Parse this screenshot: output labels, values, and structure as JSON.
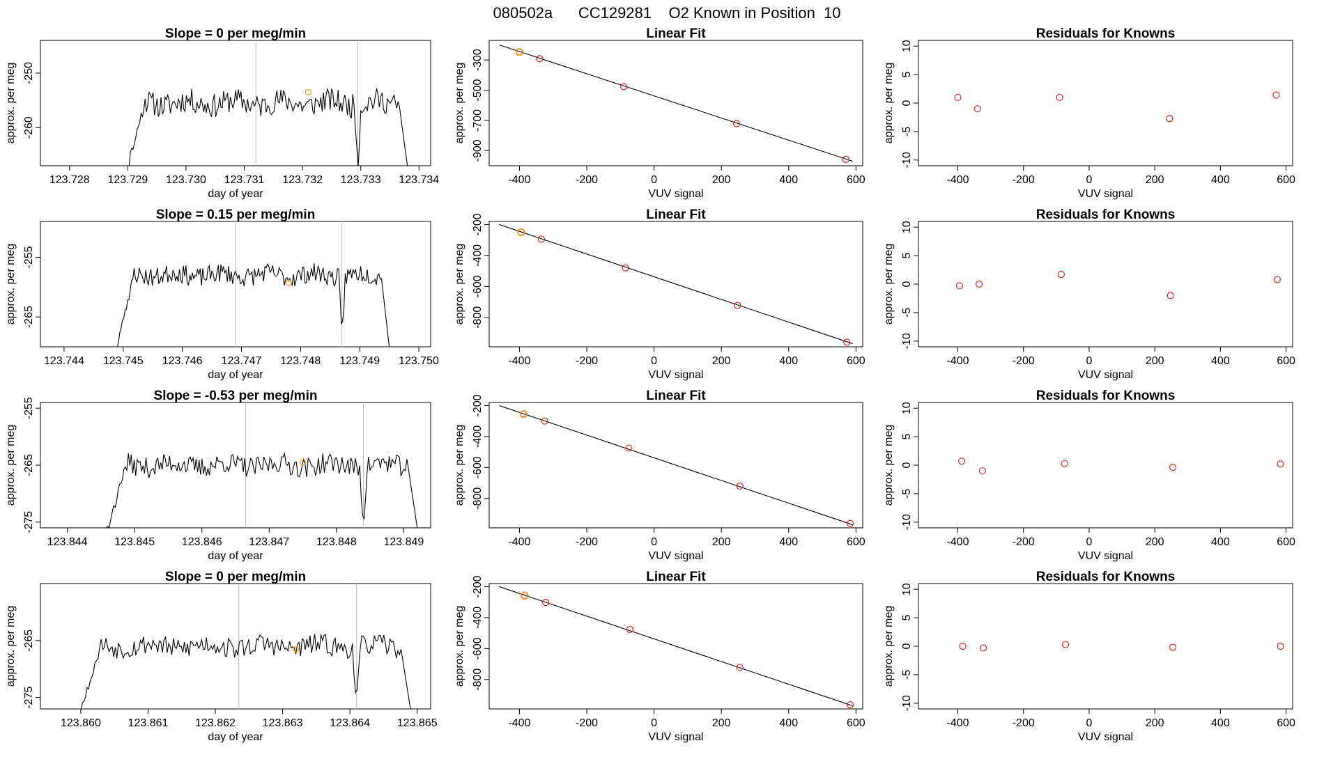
{
  "supertitle": "080502a      CC129281    O2 Known in Position  10",
  "colors": {
    "line": "#000000",
    "fit_point": "#d62728",
    "highlight_point": "#ff9f1a",
    "vline": "#bdbdbd"
  },
  "chart_data": [
    {
      "type": "line",
      "title": "Slope =  0  per meg/min",
      "xlabel": "day of year",
      "ylabel": "approx. per meg",
      "xlim": [
        123.7275,
        123.7342
      ],
      "ylim": [
        -267,
        -244
      ],
      "xticks": [
        123.728,
        123.729,
        123.73,
        123.731,
        123.732,
        123.733,
        123.734
      ],
      "xtick_labels": [
        "123.728",
        "123.729",
        "123.730",
        "123.731",
        "123.732",
        "123.733",
        "123.734"
      ],
      "yticks": [
        -260,
        -250
      ],
      "ytick_labels": [
        "-260",
        "-250"
      ],
      "vlines": [
        123.7312,
        123.73295
      ],
      "trace": {
        "x_start": 123.729,
        "x_end": 123.7338,
        "baseline": -255.5,
        "amplitude": 2.2,
        "floor": -267,
        "seed": 11
      },
      "highlight": {
        "x": 123.7321,
        "y": -253.5
      }
    },
    {
      "type": "scatter",
      "title": "Linear Fit",
      "xlabel": "VUV signal",
      "ylabel": "approx. per meg",
      "xlim": [
        -490,
        620
      ],
      "ylim": [
        -1000,
        -170
      ],
      "xticks": [
        -400,
        -200,
        0,
        200,
        400,
        600
      ],
      "xtick_labels": [
        "-400",
        "-200",
        "0",
        "200",
        "400",
        "600"
      ],
      "yticks": [
        -900,
        -700,
        -500,
        -300
      ],
      "ytick_labels": [
        "-900",
        "-700",
        "-500",
        "-300"
      ],
      "fit_line": {
        "x": [
          -460,
          590
        ],
        "y": [
          -200,
          -970
        ]
      },
      "points": {
        "x": [
          -400,
          -340,
          -90,
          245,
          570
        ],
        "y": [
          -247,
          -291,
          -476,
          -721,
          -958
        ]
      },
      "highlight_point": {
        "x": -400,
        "y": -247
      }
    },
    {
      "type": "scatter",
      "title": "Residuals for Knowns",
      "xlabel": "VUV signal",
      "ylabel": "approx. per meg",
      "xlim": [
        -520,
        620
      ],
      "ylim": [
        -11,
        11
      ],
      "xticks": [
        -400,
        -200,
        0,
        200,
        400,
        600
      ],
      "xtick_labels": [
        "-400",
        "-200",
        "0",
        "200",
        "400",
        "600"
      ],
      "yticks": [
        -10,
        -5,
        0,
        5,
        10
      ],
      "ytick_labels": [
        "-10",
        "-5",
        "0",
        "5",
        "10"
      ],
      "points": {
        "x": [
          -400,
          -340,
          -90,
          245,
          570
        ],
        "y": [
          1.0,
          -1.0,
          1.0,
          -2.7,
          1.4
        ]
      }
    },
    {
      "type": "line",
      "title": "Slope =  0.15  per meg/min",
      "xlabel": "day of year",
      "ylabel": "approx. per meg",
      "xlim": [
        123.7436,
        123.7502
      ],
      "ylim": [
        -270,
        -249
      ],
      "xticks": [
        123.744,
        123.745,
        123.746,
        123.747,
        123.748,
        123.749,
        123.75
      ],
      "xtick_labels": [
        "123.744",
        "123.745",
        "123.746",
        "123.747",
        "123.748",
        "123.749",
        "123.750"
      ],
      "yticks": [
        -265,
        -255
      ],
      "ytick_labels": [
        "-265",
        "-255"
      ],
      "vlines": [
        123.7469,
        123.7487
      ],
      "trace": {
        "x_start": 123.7449,
        "x_end": 123.7495,
        "baseline": -258.0,
        "amplitude": 1.6,
        "floor": -270,
        "seed": 23
      },
      "highlight": {
        "x": 123.7478,
        "y": -259.3
      }
    },
    {
      "type": "scatter",
      "title": "Linear Fit",
      "xlabel": "VUV signal",
      "ylabel": "approx. per meg",
      "xlim": [
        -490,
        620
      ],
      "ylim": [
        -990,
        -180
      ],
      "xticks": [
        -400,
        -200,
        0,
        200,
        400,
        600
      ],
      "xtick_labels": [
        "-400",
        "-200",
        "0",
        "200",
        "400",
        "600"
      ],
      "yticks": [
        -800,
        -600,
        -400,
        -200
      ],
      "ytick_labels": [
        "-800",
        "-600",
        "-400",
        "-200"
      ],
      "fit_line": {
        "x": [
          -460,
          590
        ],
        "y": [
          -200,
          -970
        ]
      },
      "points": {
        "x": [
          -395,
          -335,
          -85,
          248,
          573
        ],
        "y": [
          -250,
          -294,
          -480,
          -723,
          -960
        ]
      },
      "highlight_point": {
        "x": -395,
        "y": -250
      }
    },
    {
      "type": "scatter",
      "title": "Residuals for Knowns",
      "xlabel": "VUV signal",
      "ylabel": "approx. per meg",
      "xlim": [
        -520,
        620
      ],
      "ylim": [
        -11,
        11
      ],
      "xticks": [
        -400,
        -200,
        0,
        200,
        400,
        600
      ],
      "xtick_labels": [
        "-400",
        "-200",
        "0",
        "200",
        "400",
        "600"
      ],
      "yticks": [
        -10,
        -5,
        0,
        5,
        10
      ],
      "ytick_labels": [
        "-10",
        "-5",
        "0",
        "5",
        "10"
      ],
      "points": {
        "x": [
          -395,
          -335,
          -85,
          248,
          573
        ],
        "y": [
          -0.3,
          0.0,
          1.7,
          -2.0,
          0.8
        ]
      }
    },
    {
      "type": "line",
      "title": "Slope =  -0.53  per meg/min",
      "xlabel": "day of year",
      "ylabel": "approx. per meg",
      "xlim": [
        123.8436,
        123.8494
      ],
      "ylim": [
        -276,
        -254
      ],
      "xticks": [
        123.844,
        123.845,
        123.846,
        123.847,
        123.848,
        123.849
      ],
      "xtick_labels": [
        "123.844",
        "123.845",
        "123.846",
        "123.847",
        "123.848",
        "123.849"
      ],
      "yticks": [
        -275,
        -265,
        -255
      ],
      "ytick_labels": [
        "-275",
        "-265",
        "-255"
      ],
      "vlines": [
        123.84665,
        123.8484
      ],
      "trace": {
        "x_start": 123.8446,
        "x_end": 123.8492,
        "baseline": -265.0,
        "amplitude": 1.8,
        "floor": -276,
        "seed": 37
      },
      "highlight": {
        "x": 123.8475,
        "y": -264.5
      }
    },
    {
      "type": "scatter",
      "title": "Linear Fit",
      "xlabel": "VUV signal",
      "ylabel": "approx. per meg",
      "xlim": [
        -490,
        620
      ],
      "ylim": [
        -990,
        -180
      ],
      "xticks": [
        -400,
        -200,
        0,
        200,
        400,
        600
      ],
      "xtick_labels": [
        "-400",
        "-200",
        "0",
        "200",
        "400",
        "600"
      ],
      "yticks": [
        -800,
        -600,
        -400,
        -200
      ],
      "ytick_labels": [
        "-800",
        "-600",
        "-400",
        "-200"
      ],
      "fit_line": {
        "x": [
          -460,
          590
        ],
        "y": [
          -200,
          -970
        ]
      },
      "points": {
        "x": [
          -388,
          -325,
          -75,
          255,
          583
        ],
        "y": [
          -255,
          -300,
          -475,
          -720,
          -962
        ]
      },
      "highlight_point": {
        "x": -388,
        "y": -255
      }
    },
    {
      "type": "scatter",
      "title": "Residuals for Knowns",
      "xlabel": "VUV signal",
      "ylabel": "approx. per meg",
      "xlim": [
        -520,
        620
      ],
      "ylim": [
        -11,
        11
      ],
      "xticks": [
        -400,
        -200,
        0,
        200,
        400,
        600
      ],
      "xtick_labels": [
        "-400",
        "-200",
        "0",
        "200",
        "400",
        "600"
      ],
      "yticks": [
        -10,
        -5,
        0,
        5,
        10
      ],
      "ytick_labels": [
        "-10",
        "-5",
        "0",
        "5",
        "10"
      ],
      "points": {
        "x": [
          -388,
          -325,
          -75,
          255,
          583
        ],
        "y": [
          0.7,
          -1.0,
          0.3,
          -0.4,
          0.2
        ]
      }
    },
    {
      "type": "line",
      "title": "Slope =  0  per meg/min",
      "xlabel": "day of year",
      "ylabel": "approx. per meg",
      "xlim": [
        123.8594,
        123.8652
      ],
      "ylim": [
        -277,
        -255
      ],
      "xticks": [
        123.86,
        123.861,
        123.862,
        123.863,
        123.864,
        123.865
      ],
      "xtick_labels": [
        "123.860",
        "123.861",
        "123.862",
        "123.863",
        "123.864",
        "123.865"
      ],
      "yticks": [
        -275,
        -265
      ],
      "ytick_labels": [
        "-275",
        "-265"
      ],
      "vlines": [
        123.86235,
        123.8641
      ],
      "trace": {
        "x_start": 123.86,
        "x_end": 123.8649,
        "baseline": -266.0,
        "amplitude": 1.8,
        "floor": -277,
        "seed": 53
      },
      "highlight": {
        "x": 123.8632,
        "y": -266.5
      }
    },
    {
      "type": "scatter",
      "title": "Linear Fit",
      "xlabel": "VUV signal",
      "ylabel": "approx. per meg",
      "xlim": [
        -490,
        620
      ],
      "ylim": [
        -990,
        -180
      ],
      "xticks": [
        -400,
        -200,
        0,
        200,
        400,
        600
      ],
      "xtick_labels": [
        "-400",
        "-200",
        "0",
        "200",
        "400",
        "600"
      ],
      "yticks": [
        -800,
        -600,
        -400,
        -200
      ],
      "ytick_labels": [
        "-800",
        "-600",
        "-400",
        "-200"
      ],
      "fit_line": {
        "x": [
          -460,
          590
        ],
        "y": [
          -200,
          -970
        ]
      },
      "points": {
        "x": [
          -385,
          -322,
          -72,
          255,
          583
        ],
        "y": [
          -258,
          -302,
          -477,
          -722,
          -963
        ]
      },
      "highlight_point": {
        "x": -385,
        "y": -258
      }
    },
    {
      "type": "scatter",
      "title": "Residuals for Knowns",
      "xlabel": "VUV signal",
      "ylabel": "approx. per meg",
      "xlim": [
        -520,
        620
      ],
      "ylim": [
        -11,
        11
      ],
      "xticks": [
        -400,
        -200,
        0,
        200,
        400,
        600
      ],
      "xtick_labels": [
        "-400",
        "-200",
        "0",
        "200",
        "400",
        "600"
      ],
      "yticks": [
        -10,
        -5,
        0,
        5,
        10
      ],
      "ytick_labels": [
        "-10",
        "-5",
        "0",
        "5",
        "10"
      ],
      "points": {
        "x": [
          -385,
          -322,
          -72,
          255,
          583
        ],
        "y": [
          0.0,
          -0.3,
          0.3,
          -0.2,
          0.0
        ]
      }
    }
  ]
}
